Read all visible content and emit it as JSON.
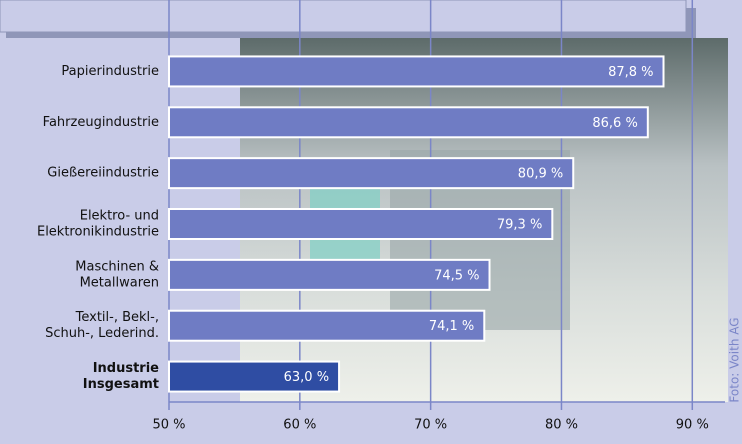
{
  "chart_data": {
    "type": "hbar",
    "categories": [
      [
        "Papierindustrie"
      ],
      [
        "Fahrzeugindustrie"
      ],
      [
        "Gießereiindustrie"
      ],
      [
        "Elektro- und",
        "Elektronikindustrie"
      ],
      [
        "Maschinen &",
        "Metallwaren"
      ],
      [
        "Textil-, Bekl-,",
        "Schuh-, Lederind."
      ],
      [
        "Industrie",
        "Insgesamt"
      ]
    ],
    "values": [
      87.8,
      86.6,
      80.9,
      79.3,
      74.5,
      74.1,
      63.0
    ],
    "value_labels": [
      "87,8 %",
      "86,6 %",
      "80,9 %",
      "79,3 %",
      "74,5 %",
      "74,1 %",
      "63,0 %"
    ],
    "colors": [
      "#6f7cc4",
      "#6f7cc4",
      "#6f7cc4",
      "#6f7cc4",
      "#6f7cc4",
      "#6f7cc4",
      "#2f4da3"
    ],
    "bold_categories": [
      false,
      false,
      false,
      false,
      false,
      false,
      true
    ],
    "xlim": [
      50,
      92.5
    ],
    "xticks": [
      {
        "value": 50,
        "label": "50 %"
      },
      {
        "value": 60,
        "label": "60 %"
      },
      {
        "value": 70,
        "label": "70 %"
      },
      {
        "value": 80,
        "label": "80 %"
      },
      {
        "value": 90,
        "label": "90 %"
      }
    ],
    "grid": true,
    "credit": "Foto: Voith AG"
  }
}
